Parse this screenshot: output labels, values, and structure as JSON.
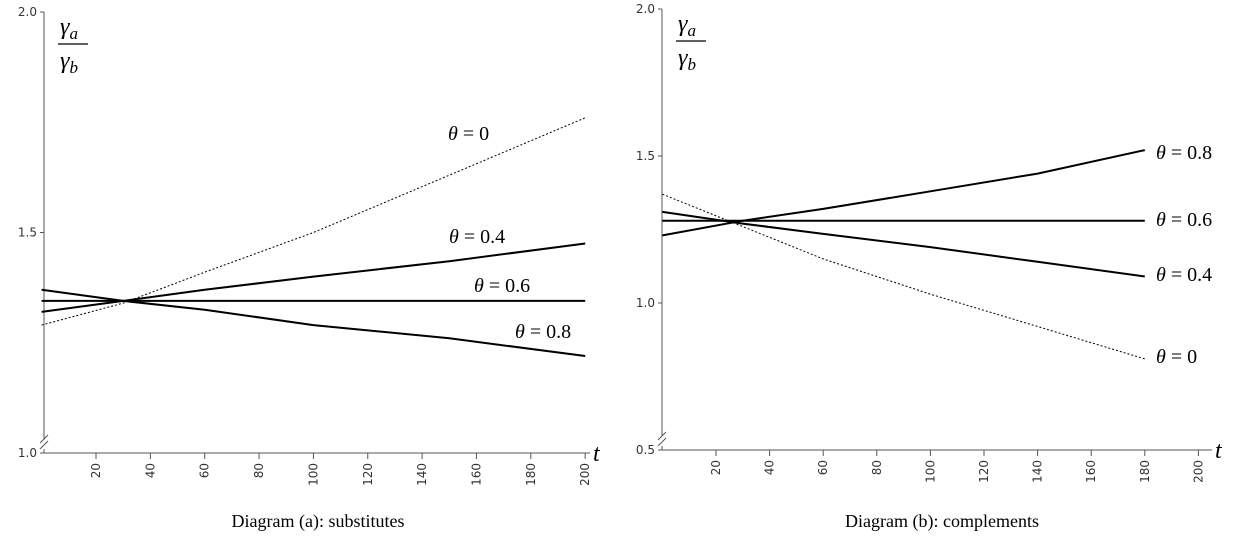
{
  "chart_data": [
    {
      "type": "line",
      "title": "Diagram (a): substitutes",
      "xlabel": "t",
      "ylabel": {
        "numerator": "γa",
        "denominator": "γb"
      },
      "xlim": [
        0,
        200
      ],
      "ylim": [
        1.0,
        2.0
      ],
      "yticks": [
        "1.0",
        "1.5",
        "2.0"
      ],
      "xticks": [
        "20",
        "40",
        "60",
        "80",
        "100",
        "120",
        "140",
        "160",
        "180",
        "200"
      ],
      "y_axis_break": true,
      "grid": false,
      "series": [
        {
          "name": "θ = 0",
          "style": "dotted",
          "x": [
            0,
            30,
            60,
            100,
            150,
            200
          ],
          "y": [
            1.29,
            1.34,
            1.41,
            1.5,
            1.63,
            1.76
          ]
        },
        {
          "name": "θ = 0.4",
          "style": "solid",
          "x": [
            0,
            30,
            60,
            100,
            150,
            200
          ],
          "y": [
            1.32,
            1.345,
            1.37,
            1.4,
            1.435,
            1.475
          ]
        },
        {
          "name": "θ = 0.6",
          "style": "solid",
          "x": [
            0,
            200
          ],
          "y": [
            1.345,
            1.345
          ]
        },
        {
          "name": "θ = 0.8",
          "style": "solid",
          "x": [
            0,
            30,
            60,
            100,
            150,
            200
          ],
          "y": [
            1.37,
            1.345,
            1.325,
            1.29,
            1.26,
            1.22
          ]
        }
      ]
    },
    {
      "type": "line",
      "title": "Diagram (b): complements",
      "xlabel": "t",
      "ylabel": {
        "numerator": "γa",
        "denominator": "γb"
      },
      "xlim": [
        0,
        200
      ],
      "ylim": [
        0.5,
        2.0
      ],
      "yticks": [
        "0.5",
        "1.0",
        "1.5",
        "2.0"
      ],
      "xticks": [
        "20",
        "40",
        "60",
        "80",
        "100",
        "120",
        "140",
        "160",
        "180",
        "200"
      ],
      "y_axis_break": true,
      "grid": false,
      "series": [
        {
          "name": "θ = 0.8",
          "style": "solid",
          "x": [
            0,
            30,
            60,
            100,
            140,
            180
          ],
          "y": [
            1.23,
            1.28,
            1.32,
            1.38,
            1.44,
            1.52
          ]
        },
        {
          "name": "θ = 0.6",
          "style": "solid",
          "x": [
            0,
            180
          ],
          "y": [
            1.28,
            1.28
          ]
        },
        {
          "name": "θ = 0.4",
          "style": "solid",
          "x": [
            0,
            30,
            60,
            100,
            140,
            180
          ],
          "y": [
            1.31,
            1.27,
            1.235,
            1.19,
            1.14,
            1.09
          ]
        },
        {
          "name": "θ = 0",
          "style": "dotted",
          "x": [
            0,
            30,
            60,
            100,
            140,
            180
          ],
          "y": [
            1.37,
            1.26,
            1.15,
            1.03,
            0.92,
            0.81
          ]
        }
      ]
    }
  ]
}
